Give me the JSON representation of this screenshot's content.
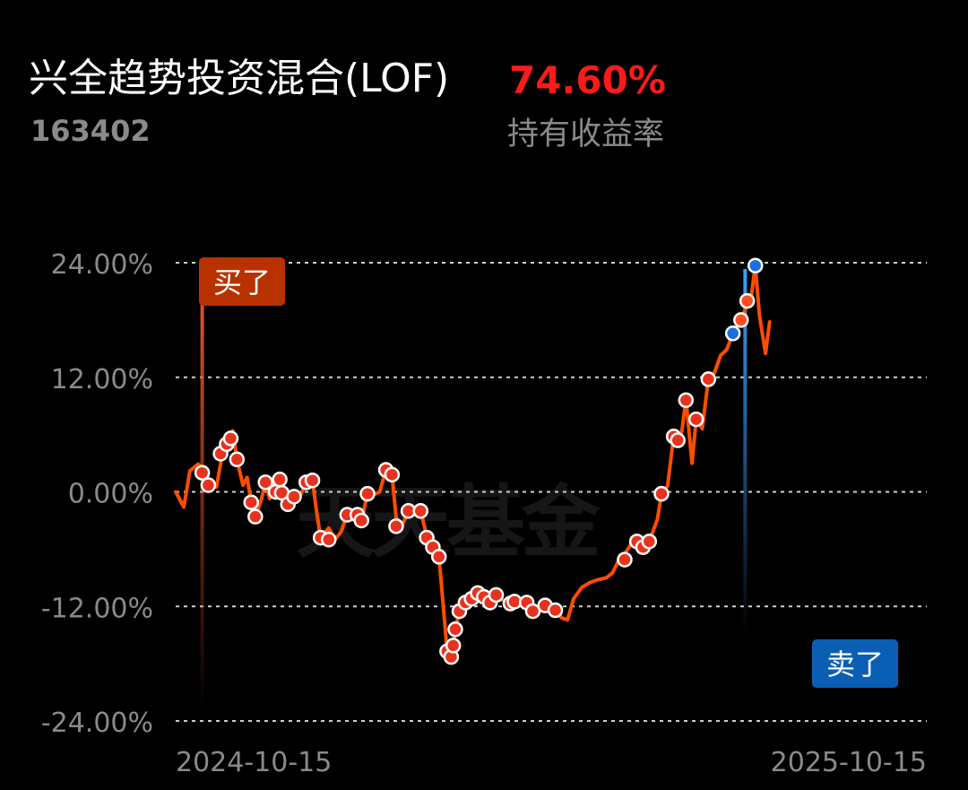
{
  "header": {
    "fund_name": "兴全趋势投资混合(LOF)",
    "fund_code": "163402",
    "return_value": "74.60%",
    "return_label": "持有收益率"
  },
  "watermark": "天天基金",
  "colors": {
    "line": "#ff4d00",
    "buy_marker": "#b83200",
    "sell_marker": "#0a5fb5",
    "return_value": "#ff1a1a",
    "grid": "#cfcfcf",
    "axis_text": "#8a8a8a"
  },
  "chart_data": {
    "type": "line",
    "title": "",
    "xlabel": "",
    "ylabel": "",
    "ylim": [
      -24,
      24
    ],
    "y_ticks": [
      24,
      12,
      0,
      -12,
      -24
    ],
    "y_tick_labels": [
      "24.00%",
      "12.00%",
      "0.00%",
      "-12.00%",
      "-24.00%"
    ],
    "x_range": [
      "2024-10-15",
      "2025-10-18"
    ],
    "x_tick_labels": [
      "2024-10-15",
      "2025-10-15"
    ],
    "grid": "horizontal dashed",
    "series": [
      {
        "values": [
          [
            "2024-10-15",
            0.0
          ],
          [
            "2024-10-19",
            -1.6
          ],
          [
            "2024-10-22",
            2.2
          ],
          [
            "2024-10-26",
            2.9
          ],
          [
            "2024-10-28",
            2.6
          ],
          [
            "2024-10-29",
            1.8
          ],
          [
            "2024-11-01",
            0.8
          ],
          [
            "2024-11-04",
            0.5
          ],
          [
            "2024-11-07",
            4.2
          ],
          [
            "2024-11-10",
            5.0
          ],
          [
            "2024-11-12",
            6.4
          ],
          [
            "2024-11-14",
            3.4
          ],
          [
            "2024-11-17",
            0.7
          ],
          [
            "2024-11-19",
            1.5
          ],
          [
            "2024-11-21",
            -1.1
          ],
          [
            "2024-11-23",
            -2.6
          ],
          [
            "2024-11-26",
            -0.8
          ],
          [
            "2024-11-28",
            1.0
          ],
          [
            "2024-11-30",
            -0.7
          ],
          [
            "2024-12-03",
            0.0
          ],
          [
            "2024-12-06",
            1.3
          ],
          [
            "2024-12-09",
            -1.3
          ],
          [
            "2024-12-12",
            -0.3
          ],
          [
            "2024-12-15",
            -0.4
          ],
          [
            "2024-12-18",
            1.0
          ],
          [
            "2024-12-21",
            1.2
          ],
          [
            "2024-12-23",
            -2.0
          ],
          [
            "2024-12-25",
            -4.8
          ],
          [
            "2024-12-29",
            -3.8
          ],
          [
            "2025-01-01",
            -5.0
          ],
          [
            "2025-01-04",
            -4.2
          ],
          [
            "2025-01-07",
            -2.4
          ],
          [
            "2025-01-10",
            -2.7
          ],
          [
            "2025-01-13",
            -2.2
          ],
          [
            "2025-01-14",
            -3.0
          ],
          [
            "2025-01-17",
            -0.2
          ],
          [
            "2025-01-21",
            -0.2
          ],
          [
            "2025-01-23",
            0.0
          ],
          [
            "2025-01-26",
            2.3
          ],
          [
            "2025-01-29",
            1.8
          ],
          [
            "2025-01-31",
            -2.7
          ],
          [
            "2025-02-03",
            -3.5
          ],
          [
            "2025-02-06",
            -2.0
          ],
          [
            "2025-02-09",
            -2.2
          ],
          [
            "2025-02-12",
            -2.0
          ],
          [
            "2025-02-15",
            -4.6
          ],
          [
            "2025-02-18",
            -5.8
          ],
          [
            "2025-02-21",
            -6.8
          ],
          [
            "2025-02-25",
            -16.7
          ],
          [
            "2025-02-27",
            -17.3
          ],
          [
            "2025-02-28",
            -16.1
          ],
          [
            "2025-03-01",
            -14.4
          ],
          [
            "2025-03-03",
            -12.5
          ],
          [
            "2025-03-06",
            -11.6
          ],
          [
            "2025-03-09",
            -11.3
          ],
          [
            "2025-03-12",
            -10.6
          ],
          [
            "2025-03-15",
            -11.0
          ],
          [
            "2025-03-18",
            -11.6
          ],
          [
            "2025-03-21",
            -10.8
          ],
          [
            "2025-03-24",
            -11.3
          ],
          [
            "2025-03-27",
            -11.7
          ],
          [
            "2025-03-30",
            -11.5
          ],
          [
            "2025-04-02",
            -11.7
          ],
          [
            "2025-04-05",
            -11.6
          ],
          [
            "2025-04-08",
            -12.5
          ],
          [
            "2025-04-11",
            -12.3
          ],
          [
            "2025-04-14",
            -11.9
          ],
          [
            "2025-04-16",
            -12.2
          ],
          [
            "2025-04-19",
            -12.4
          ],
          [
            "2025-04-22",
            -13.2
          ],
          [
            "2025-04-25",
            -13.4
          ],
          [
            "2025-04-28",
            -11.2
          ],
          [
            "2025-05-02",
            -10.0
          ],
          [
            "2025-05-06",
            -9.5
          ],
          [
            "2025-05-10",
            -9.2
          ],
          [
            "2025-05-14",
            -9.0
          ],
          [
            "2025-05-17",
            -8.5
          ],
          [
            "2025-05-20",
            -7.2
          ],
          [
            "2025-05-23",
            -6.5
          ],
          [
            "2025-05-27",
            -5.2
          ],
          [
            "2025-05-30",
            -6.3
          ],
          [
            "2025-06-01",
            -5.8
          ],
          [
            "2025-06-04",
            -5.2
          ],
          [
            "2025-06-08",
            -2.9
          ],
          [
            "2025-06-10",
            -0.2
          ],
          [
            "2025-06-13",
            0.6
          ],
          [
            "2025-06-16",
            5.8
          ],
          [
            "2025-06-18",
            5.4
          ],
          [
            "2025-06-20",
            6.3
          ],
          [
            "2025-06-22",
            9.7
          ],
          [
            "2025-06-25",
            3.0
          ],
          [
            "2025-06-27",
            7.6
          ],
          [
            "2025-06-30",
            6.6
          ],
          [
            "2025-07-03",
            11.8
          ],
          [
            "2025-07-06",
            12.5
          ],
          [
            "2025-07-09",
            14.3
          ],
          [
            "2025-07-12",
            14.9
          ],
          [
            "2025-07-15",
            16.6
          ],
          [
            "2025-07-19",
            17.8
          ],
          [
            "2025-07-22",
            19.8
          ],
          [
            "2025-07-24",
            20.5
          ],
          [
            "2025-07-26",
            23.7
          ],
          [
            "2025-07-28",
            18.5
          ],
          [
            "2025-07-31",
            14.5
          ],
          [
            "2025-08-02",
            17.8
          ]
        ]
      }
    ],
    "point_markers": [
      [
        "2024-10-28",
        2.0
      ],
      [
        "2024-10-31",
        0.7
      ],
      [
        "2024-11-06",
        4.0
      ],
      [
        "2024-11-09",
        5.0
      ],
      [
        "2024-11-11",
        5.6
      ],
      [
        "2024-11-14",
        3.4
      ],
      [
        "2024-11-21",
        -1.1
      ],
      [
        "2024-11-23",
        -2.6
      ],
      [
        "2024-11-28",
        1.0
      ],
      [
        "2024-12-03",
        0.0
      ],
      [
        "2024-12-05",
        1.3
      ],
      [
        "2024-12-06",
        -0.1
      ],
      [
        "2024-12-09",
        -1.3
      ],
      [
        "2024-12-12",
        -0.5
      ],
      [
        "2024-12-18",
        1.0
      ],
      [
        "2024-12-21",
        1.2
      ],
      [
        "2024-12-25",
        -4.8
      ],
      [
        "2024-12-29",
        -5.0
      ],
      [
        "2025-01-07",
        -2.4
      ],
      [
        "2025-01-12",
        -2.4
      ],
      [
        "2025-01-14",
        -3.0
      ],
      [
        "2025-01-17",
        -0.2
      ],
      [
        "2025-01-26",
        2.3
      ],
      [
        "2025-01-29",
        1.8
      ],
      [
        "2025-01-31",
        -3.6
      ],
      [
        "2025-02-06",
        -2.0
      ],
      [
        "2025-02-12",
        -2.0
      ],
      [
        "2025-02-15",
        -4.8
      ],
      [
        "2025-02-18",
        -5.8
      ],
      [
        "2025-02-21",
        -6.8
      ],
      [
        "2025-02-25",
        -16.7
      ],
      [
        "2025-02-27",
        -17.3
      ],
      [
        "2025-02-28",
        -16.1
      ],
      [
        "2025-02-29",
        -14.4
      ],
      [
        "2025-03-03",
        -12.5
      ],
      [
        "2025-03-06",
        -11.6
      ],
      [
        "2025-03-09",
        -11.2
      ],
      [
        "2025-03-12",
        -10.6
      ],
      [
        "2025-03-15",
        -11.0
      ],
      [
        "2025-03-18",
        -11.6
      ],
      [
        "2025-03-21",
        -10.8
      ],
      [
        "2025-03-28",
        -11.7
      ],
      [
        "2025-03-30",
        -11.5
      ],
      [
        "2025-04-05",
        -11.6
      ],
      [
        "2025-04-08",
        -12.5
      ],
      [
        "2025-04-14",
        -11.9
      ],
      [
        "2025-04-19",
        -12.4
      ],
      [
        "2025-05-23",
        -7.1
      ],
      [
        "2025-05-29",
        -5.2
      ],
      [
        "2025-06-01",
        -5.8
      ],
      [
        "2025-06-04",
        -5.2
      ],
      [
        "2025-06-10",
        -0.2
      ],
      [
        "2025-06-16",
        5.8
      ],
      [
        "2025-06-18",
        5.4
      ],
      [
        "2025-06-22",
        9.6
      ],
      [
        "2025-06-27",
        7.6
      ],
      [
        "2025-07-03",
        11.8
      ]
    ],
    "sell_point_markers": [
      [
        "2025-07-15",
        16.6
      ],
      [
        "2025-07-26",
        23.7
      ]
    ],
    "light_point_markers": [
      [
        "2025-07-19",
        18.0
      ],
      [
        "2025-07-22",
        20.0
      ]
    ],
    "buy_flag": {
      "label": "买了",
      "date": "2024-10-28"
    },
    "sell_flag": {
      "label": "卖了",
      "date": "2025-07-21"
    }
  }
}
